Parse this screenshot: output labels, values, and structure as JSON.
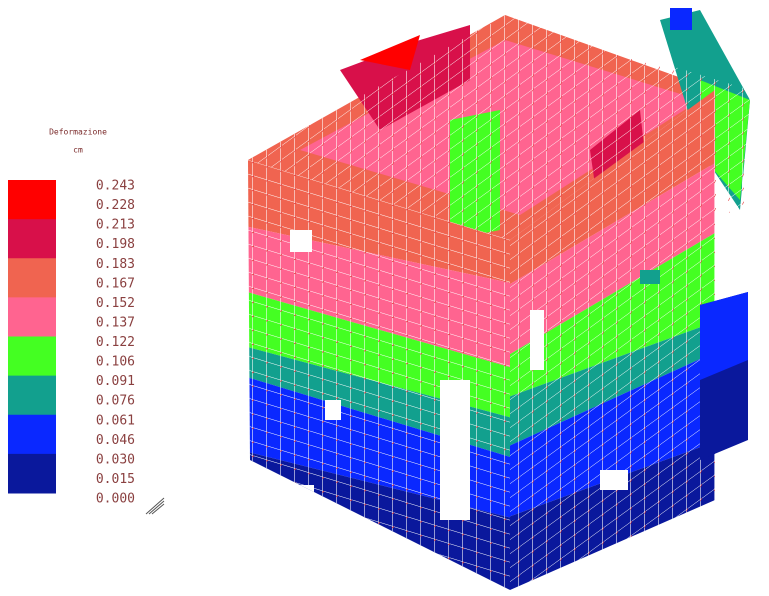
{
  "legend": {
    "title": "Deformazione",
    "unit": "cm",
    "labels": [
      "0.243",
      "0.228",
      "0.213",
      "0.198",
      "0.183",
      "0.167",
      "0.152",
      "0.137",
      "0.122",
      "0.106",
      "0.091",
      "0.076",
      "0.061",
      "0.046",
      "0.030",
      "0.015",
      "0.000"
    ],
    "colors": [
      "#ff0000",
      "#d8104a",
      "#f06450",
      "#ff6490",
      "#44ff22",
      "#12a08e",
      "#0a28ff",
      "#0a189c"
    ]
  }
}
